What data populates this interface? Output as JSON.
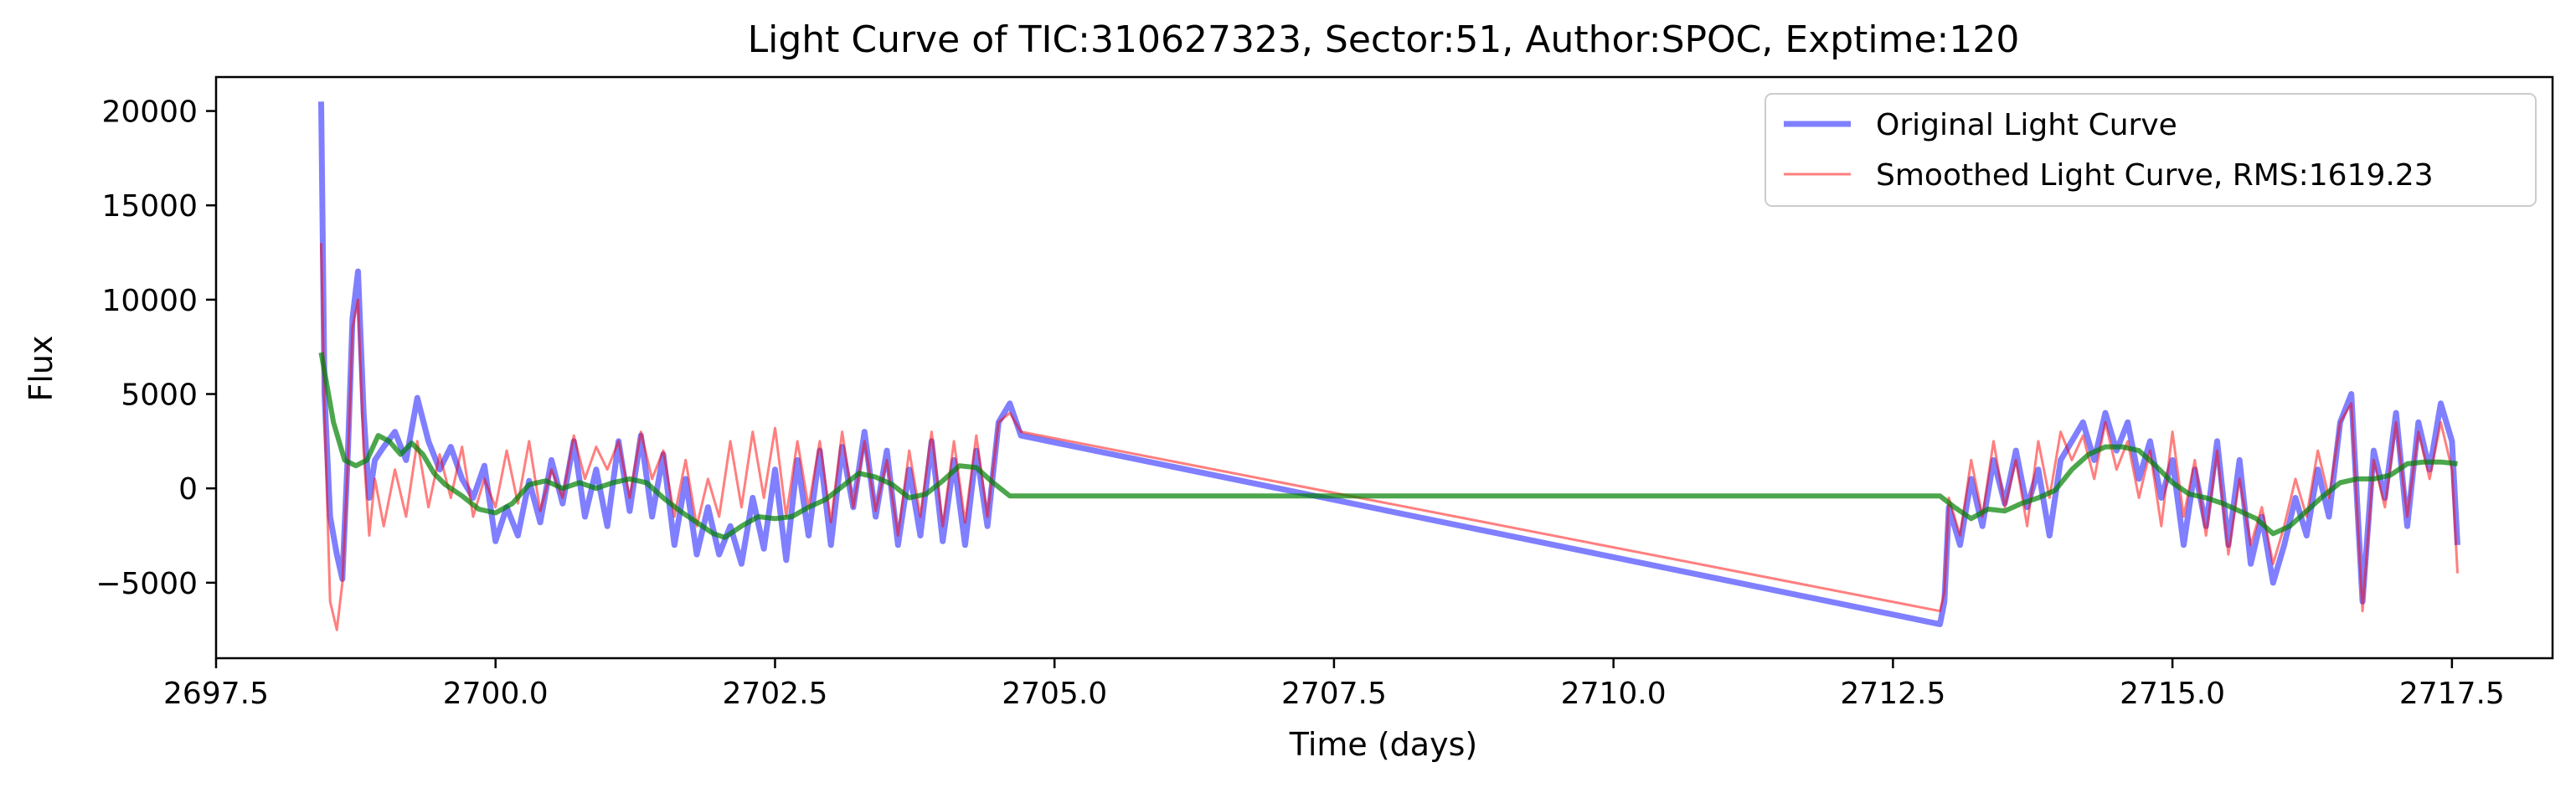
{
  "chart_data": {
    "type": "line",
    "title": "Light Curve of TIC:310627323, Sector:51, Author:SPOC, Exptime:120",
    "xlabel": "Time (days)",
    "ylabel": "Flux",
    "xlim": [
      2697.5,
      2718.4
    ],
    "ylim": [
      -9000,
      21800
    ],
    "xticks": [
      2697.5,
      2700.0,
      2702.5,
      2705.0,
      2707.5,
      2710.0,
      2712.5,
      2715.0,
      2717.5
    ],
    "xtick_labels": [
      "2697.5",
      "2700.0",
      "2702.5",
      "2705.0",
      "2707.5",
      "2710.0",
      "2712.5",
      "2715.0",
      "2717.5"
    ],
    "yticks": [
      -5000,
      0,
      5000,
      10000,
      15000,
      20000
    ],
    "ytick_labels": [
      "−5000",
      "0",
      "5000",
      "10000",
      "15000",
      "20000"
    ],
    "legend_position": "top-right",
    "grid": false,
    "series": [
      {
        "name": "Original Light Curve",
        "color": "#0000ff",
        "alpha": 0.5,
        "x": [
          2698.44,
          2698.47,
          2698.52,
          2698.58,
          2698.63,
          2698.68,
          2698.72,
          2698.77,
          2698.82,
          2698.87,
          2698.92,
          2699.0,
          2699.1,
          2699.2,
          2699.3,
          2699.4,
          2699.5,
          2699.6,
          2699.7,
          2699.8,
          2699.9,
          2700.0,
          2700.1,
          2700.2,
          2700.3,
          2700.4,
          2700.5,
          2700.6,
          2700.7,
          2700.8,
          2700.9,
          2701.0,
          2701.1,
          2701.2,
          2701.3,
          2701.4,
          2701.5,
          2701.6,
          2701.7,
          2701.8,
          2701.9,
          2702.0,
          2702.1,
          2702.2,
          2702.3,
          2702.4,
          2702.5,
          2702.6,
          2702.7,
          2702.8,
          2702.9,
          2703.0,
          2703.1,
          2703.2,
          2703.3,
          2703.4,
          2703.5,
          2703.6,
          2703.7,
          2703.8,
          2703.9,
          2704.0,
          2704.1,
          2704.2,
          2704.3,
          2704.4,
          2704.5,
          2704.6,
          2704.7,
          2712.92,
          2712.96,
          2713.0,
          2713.1,
          2713.2,
          2713.3,
          2713.4,
          2713.5,
          2713.6,
          2713.7,
          2713.8,
          2713.9,
          2714.0,
          2714.1,
          2714.2,
          2714.3,
          2714.4,
          2714.5,
          2714.6,
          2714.7,
          2714.8,
          2714.9,
          2715.0,
          2715.1,
          2715.2,
          2715.3,
          2715.4,
          2715.5,
          2715.6,
          2715.7,
          2715.8,
          2715.9,
          2716.0,
          2716.1,
          2716.2,
          2716.3,
          2716.4,
          2716.5,
          2716.6,
          2716.7,
          2716.8,
          2716.9,
          2717.0,
          2717.1,
          2717.2,
          2717.3,
          2717.4,
          2717.5,
          2717.55
        ],
        "y": [
          20500,
          5000,
          -1500,
          -3500,
          -4800,
          2000,
          9000,
          11500,
          4000,
          -500,
          1500,
          2200,
          3000,
          1500,
          4800,
          2500,
          1000,
          2200,
          500,
          -500,
          1200,
          -2800,
          -1000,
          -2500,
          400,
          -1800,
          1500,
          -800,
          2500,
          -1500,
          1000,
          -2000,
          2500,
          -1200,
          2800,
          -1500,
          1800,
          -3000,
          500,
          -3500,
          -1000,
          -3500,
          -2000,
          -4000,
          -500,
          -3200,
          1000,
          -3800,
          1500,
          -2500,
          2000,
          -3000,
          2200,
          -1000,
          3000,
          -1500,
          2000,
          -3000,
          1000,
          -2500,
          2500,
          -2800,
          1500,
          -3000,
          2000,
          -2000,
          3500,
          4500,
          2800,
          -7200,
          -6000,
          -1000,
          -3000,
          500,
          -2000,
          1500,
          -800,
          2000,
          -1000,
          1000,
          -2500,
          1500,
          2500,
          3500,
          1500,
          4000,
          2000,
          3500,
          500,
          2500,
          -500,
          1500,
          -3000,
          1000,
          -2000,
          2500,
          -3000,
          1500,
          -4000,
          -1500,
          -5000,
          -3000,
          -500,
          -2500,
          1000,
          -1500,
          3500,
          5000,
          -6000,
          2000,
          -500,
          4000,
          -2000,
          3500,
          1000,
          4500,
          2500,
          -3000
        ]
      },
      {
        "name": "Smoothed Light Curve, RMS:1619.23",
        "color": "#ff0000",
        "alpha": 0.5,
        "x": [
          2698.44,
          2698.47,
          2698.52,
          2698.58,
          2698.63,
          2698.68,
          2698.72,
          2698.77,
          2698.82,
          2698.87,
          2698.92,
          2699.0,
          2699.1,
          2699.2,
          2699.3,
          2699.4,
          2699.5,
          2699.6,
          2699.7,
          2699.8,
          2699.9,
          2700.0,
          2700.1,
          2700.2,
          2700.3,
          2700.4,
          2700.5,
          2700.6,
          2700.7,
          2700.8,
          2700.9,
          2701.0,
          2701.1,
          2701.2,
          2701.3,
          2701.4,
          2701.5,
          2701.6,
          2701.7,
          2701.8,
          2701.9,
          2702.0,
          2702.1,
          2702.2,
          2702.3,
          2702.4,
          2702.5,
          2702.6,
          2702.7,
          2702.8,
          2702.9,
          2703.0,
          2703.1,
          2703.2,
          2703.3,
          2703.4,
          2703.5,
          2703.6,
          2703.7,
          2703.8,
          2703.9,
          2704.0,
          2704.1,
          2704.2,
          2704.3,
          2704.4,
          2704.5,
          2704.6,
          2704.7,
          2712.92,
          2712.96,
          2713.0,
          2713.1,
          2713.2,
          2713.3,
          2713.4,
          2713.5,
          2713.6,
          2713.7,
          2713.8,
          2713.9,
          2714.0,
          2714.1,
          2714.2,
          2714.3,
          2714.4,
          2714.5,
          2714.6,
          2714.7,
          2714.8,
          2714.9,
          2715.0,
          2715.1,
          2715.2,
          2715.3,
          2715.4,
          2715.5,
          2715.6,
          2715.7,
          2715.8,
          2715.9,
          2716.0,
          2716.1,
          2716.2,
          2716.3,
          2716.4,
          2716.5,
          2716.6,
          2716.7,
          2716.8,
          2716.9,
          2717.0,
          2717.1,
          2717.2,
          2717.3,
          2717.4,
          2717.5,
          2717.55
        ],
        "y": [
          13000,
          4000,
          -6000,
          -7500,
          -5000,
          1500,
          8500,
          10000,
          2000,
          -2500,
          500,
          -2000,
          1000,
          -1500,
          2500,
          -1000,
          1800,
          -500,
          2200,
          -1500,
          500,
          -1000,
          2000,
          -800,
          2500,
          -1200,
          1000,
          -500,
          2800,
          500,
          2200,
          1000,
          2500,
          -500,
          3000,
          500,
          2000,
          -1500,
          1500,
          -2000,
          500,
          -1500,
          2500,
          -1000,
          3000,
          -500,
          3200,
          -1500,
          2500,
          -1000,
          2500,
          -1800,
          3000,
          -1000,
          2500,
          -1200,
          1500,
          -2500,
          2000,
          -1500,
          3000,
          -2000,
          2500,
          -1800,
          2800,
          -1500,
          3500,
          4000,
          3000,
          -6500,
          -5500,
          -500,
          -2500,
          1500,
          -1500,
          2500,
          -1000,
          1500,
          -2000,
          2500,
          -500,
          3000,
          1500,
          2800,
          500,
          3500,
          1000,
          2500,
          -500,
          2000,
          -2000,
          3000,
          -1500,
          1500,
          -2500,
          2000,
          -3500,
          500,
          -3000,
          -1000,
          -4000,
          -2000,
          500,
          -1500,
          2000,
          -500,
          3500,
          4500,
          -6500,
          1500,
          -1000,
          3500,
          -1500,
          3000,
          500,
          3500,
          1000,
          -4500
        ]
      },
      {
        "name": "",
        "color": "#008000",
        "alpha": 0.7,
        "x": [
          2698.44,
          2698.55,
          2698.65,
          2698.75,
          2698.85,
          2698.95,
          2699.05,
          2699.15,
          2699.25,
          2699.35,
          2699.45,
          2699.55,
          2699.7,
          2699.85,
          2700.0,
          2700.15,
          2700.3,
          2700.45,
          2700.6,
          2700.75,
          2700.9,
          2701.05,
          2701.2,
          2701.35,
          2701.5,
          2701.65,
          2701.8,
          2701.95,
          2702.05,
          2702.2,
          2702.35,
          2702.5,
          2702.65,
          2702.8,
          2702.95,
          2703.1,
          2703.25,
          2703.4,
          2703.55,
          2703.7,
          2703.85,
          2704.0,
          2704.15,
          2704.3,
          2704.45,
          2704.6,
          2704.7,
          2704.85,
          2712.92,
          2713.05,
          2713.2,
          2713.35,
          2713.5,
          2713.65,
          2713.8,
          2713.95,
          2714.1,
          2714.25,
          2714.4,
          2714.55,
          2714.7,
          2714.85,
          2715.0,
          2715.15,
          2715.3,
          2715.45,
          2715.6,
          2715.75,
          2715.9,
          2716.05,
          2716.2,
          2716.35,
          2716.5,
          2716.65,
          2716.8,
          2716.95,
          2717.1,
          2717.25,
          2717.4,
          2717.55
        ],
        "y": [
          7200,
          3500,
          1500,
          1200,
          1500,
          2800,
          2500,
          1800,
          2400,
          1800,
          800,
          200,
          -400,
          -1100,
          -1300,
          -800,
          200,
          400,
          0,
          300,
          0,
          300,
          500,
          300,
          -500,
          -1200,
          -1800,
          -2400,
          -2600,
          -2000,
          -1500,
          -1600,
          -1500,
          -1000,
          -600,
          100,
          800,
          600,
          200,
          -500,
          -300,
          400,
          1200,
          1100,
          300,
          -400,
          -400,
          -400,
          -400,
          -1000,
          -1600,
          -1100,
          -1200,
          -800,
          -500,
          -100,
          1000,
          1800,
          2200,
          2200,
          2000,
          1200,
          300,
          -300,
          -500,
          -800,
          -1200,
          -1600,
          -2400,
          -2000,
          -1200,
          -400,
          300,
          500,
          500,
          700,
          1300,
          1400,
          1400,
          1300
        ]
      }
    ]
  }
}
